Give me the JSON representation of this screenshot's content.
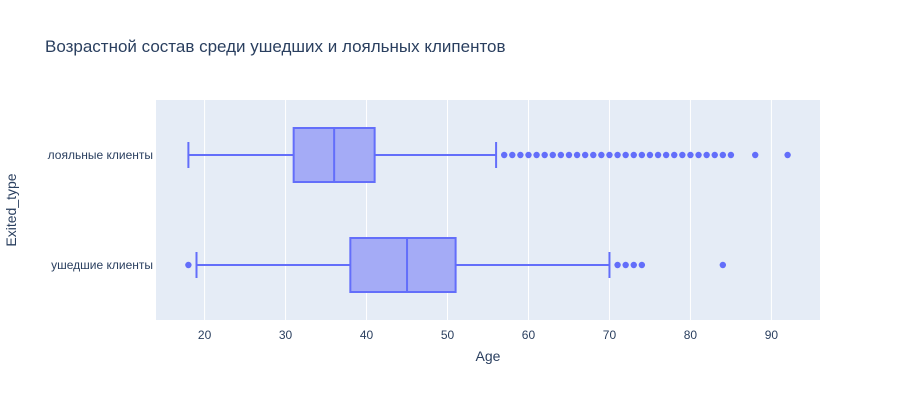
{
  "chart_data": {
    "type": "box",
    "orientation": "horizontal",
    "title": "Возрастной состав среди ушедших и лояльных клипентов",
    "xlabel": "Age",
    "ylabel": "Exited_type",
    "xlim": [
      14,
      96
    ],
    "xticks": [
      20,
      30,
      40,
      50,
      60,
      70,
      80,
      90
    ],
    "grid": true,
    "colors": {
      "box_line": "#636efa",
      "box_fill": "#a4abf6",
      "plot_bg": "#e5ecf6",
      "text": "#2a3f5f"
    },
    "categories": [
      "лояльные клиенты",
      "ушедшие клиенты"
    ],
    "series": [
      {
        "category": "лояльные клиенты",
        "lowerfence": 18,
        "q1": 31,
        "median": 36,
        "q3": 41,
        "upperfence": 56,
        "outliers": [
          57,
          58,
          59,
          60,
          61,
          62,
          63,
          64,
          65,
          66,
          67,
          68,
          69,
          70,
          71,
          72,
          73,
          74,
          75,
          76,
          77,
          78,
          79,
          80,
          81,
          82,
          83,
          84,
          85,
          88,
          92
        ]
      },
      {
        "category": "ушедшие клиенты",
        "lowerfence": 19,
        "q1": 38,
        "median": 45,
        "q3": 51,
        "upperfence": 70,
        "outliers": [
          18,
          71,
          72,
          73,
          74,
          84
        ]
      }
    ]
  }
}
